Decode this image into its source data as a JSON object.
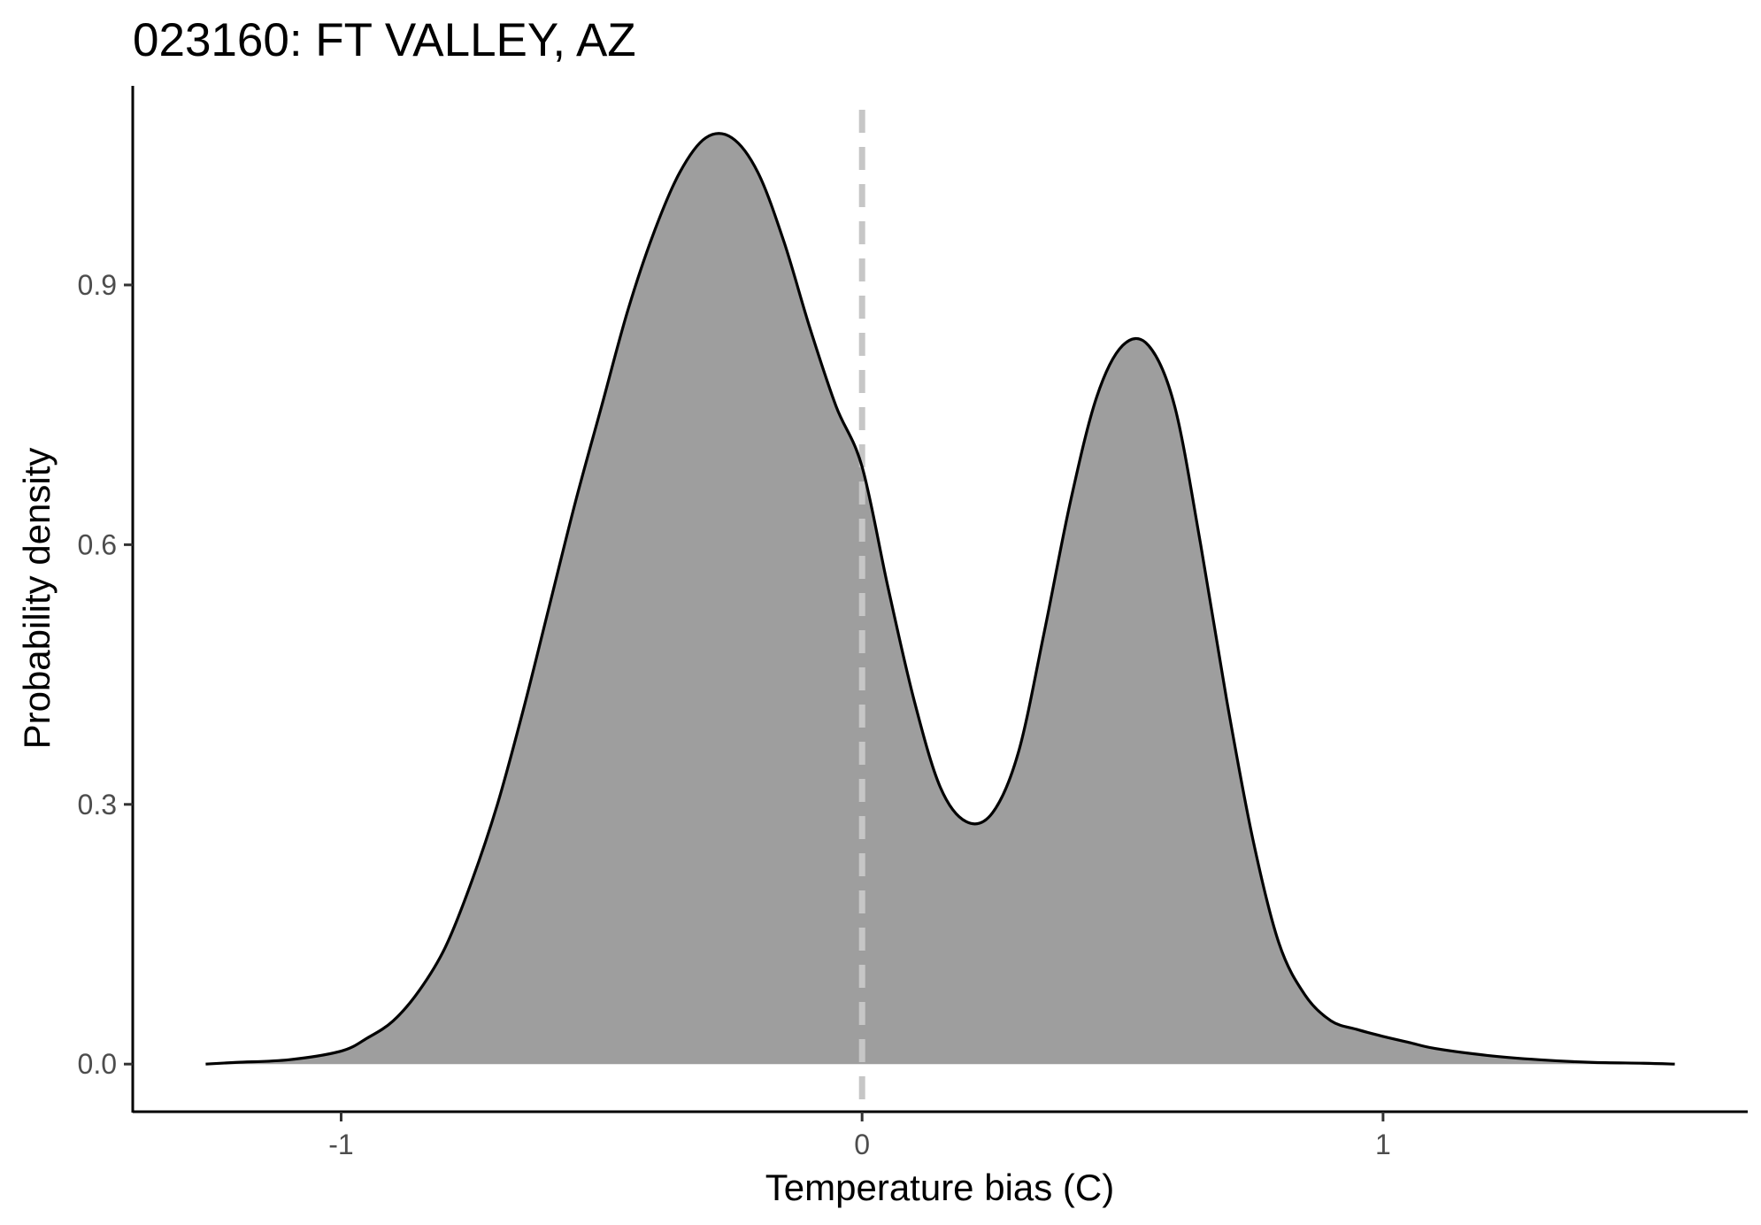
{
  "chart_data": {
    "type": "area",
    "title": "023160: FT VALLEY, AZ",
    "xlabel": "Temperature bias (C)",
    "ylabel": "Probability density",
    "xlim": [
      -1.4,
      1.7
    ],
    "ylim": [
      -0.055,
      1.13
    ],
    "x_ticks": [
      -1,
      0,
      1
    ],
    "x_tick_labels": [
      "-1",
      "0",
      "1"
    ],
    "y_ticks": [
      0.0,
      0.3,
      0.6,
      0.9
    ],
    "y_tick_labels": [
      "0.0",
      "0.3",
      "0.6",
      "0.9"
    ],
    "grid": false,
    "legend": "none",
    "reference_line": {
      "x": 0,
      "style": "dashed",
      "color": "#c6c6c6"
    },
    "fill_color": "#9e9e9e",
    "line_color": "#000000",
    "series": [
      {
        "x": [
          -1.26,
          -1.2,
          -1.1,
          -1.0,
          -0.95,
          -0.9,
          -0.85,
          -0.8,
          -0.75,
          -0.7,
          -0.65,
          -0.6,
          -0.55,
          -0.5,
          -0.45,
          -0.4,
          -0.35,
          -0.3,
          -0.25,
          -0.2,
          -0.15,
          -0.1,
          -0.05,
          0.0,
          0.05,
          0.1,
          0.15,
          0.2,
          0.25,
          0.3,
          0.35,
          0.4,
          0.45,
          0.5,
          0.55,
          0.6,
          0.65,
          0.7,
          0.75,
          0.8,
          0.85,
          0.9,
          0.95,
          1.0,
          1.05,
          1.1,
          1.2,
          1.3,
          1.4,
          1.5,
          1.56
        ],
        "y": [
          0.0,
          0.002,
          0.005,
          0.015,
          0.03,
          0.05,
          0.085,
          0.135,
          0.21,
          0.3,
          0.41,
          0.53,
          0.65,
          0.76,
          0.87,
          0.96,
          1.03,
          1.07,
          1.07,
          1.03,
          0.95,
          0.85,
          0.76,
          0.69,
          0.55,
          0.42,
          0.32,
          0.28,
          0.29,
          0.36,
          0.5,
          0.65,
          0.77,
          0.83,
          0.83,
          0.76,
          0.6,
          0.42,
          0.26,
          0.14,
          0.08,
          0.05,
          0.04,
          0.032,
          0.025,
          0.018,
          0.01,
          0.005,
          0.002,
          0.001,
          0.0
        ]
      }
    ]
  }
}
